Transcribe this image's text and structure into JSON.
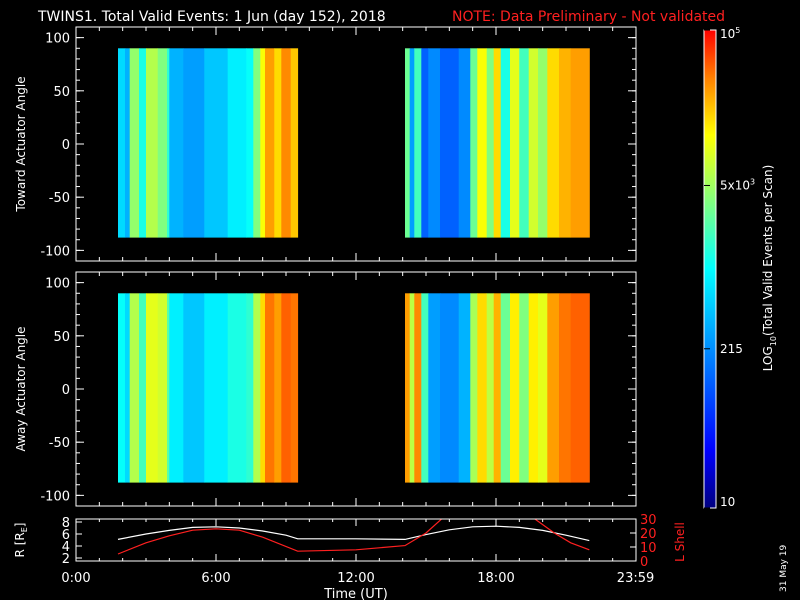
{
  "header": {
    "title": "TWINS1. Total Valid Events:  1 Jun (day 152), 2018",
    "note": "NOTE: Data Preliminary - Not validated",
    "note_color": "#ff2020"
  },
  "footer_date": "31 May 19",
  "colorbar": {
    "label": "LOG",
    "label_sub": "10",
    "label_rest": "(Total Valid  Events per Scan)",
    "ticks": [
      {
        "text": "10",
        "value": 10
      },
      {
        "text": "215",
        "value": 215
      },
      {
        "text": "5x10",
        "sup": "3",
        "value": 5000
      },
      {
        "text": "10",
        "sup": "5",
        "value": 100000
      }
    ],
    "range": [
      10,
      100000
    ],
    "scale": "log",
    "colormap": "jet"
  },
  "chart_data": [
    {
      "type": "heatmap",
      "panel": "top",
      "ylabel": "Toward Actuator Angle",
      "ylim": [
        -110,
        110
      ],
      "yticks": [
        100,
        50,
        0,
        -50,
        -100
      ],
      "xlim": [
        0,
        24
      ],
      "data_blocks": [
        {
          "t_start": 1.8,
          "t_end": 9.5,
          "angle_min": -88,
          "angle_max": 90
        },
        {
          "t_start": 14.1,
          "t_end": 22.0,
          "angle_min": -88,
          "angle_max": 90
        }
      ],
      "column_levels": [
        {
          "t": 1.8,
          "level": 0.34
        },
        {
          "t": 2.1,
          "level": 0.3
        },
        {
          "t": 2.3,
          "level": 0.52
        },
        {
          "t": 2.7,
          "level": 0.4
        },
        {
          "t": 3.0,
          "level": 0.55
        },
        {
          "t": 3.5,
          "level": 0.5
        },
        {
          "t": 3.9,
          "level": 0.42
        },
        {
          "t": 4.0,
          "level": 0.3
        },
        {
          "t": 4.6,
          "level": 0.28
        },
        {
          "t": 5.5,
          "level": 0.32
        },
        {
          "t": 6.5,
          "level": 0.36
        },
        {
          "t": 7.3,
          "level": 0.38
        },
        {
          "t": 7.6,
          "level": 0.5
        },
        {
          "t": 7.9,
          "level": 0.62
        },
        {
          "t": 8.1,
          "level": 0.72
        },
        {
          "t": 8.5,
          "level": 0.66
        },
        {
          "t": 8.8,
          "level": 0.74
        },
        {
          "t": 9.2,
          "level": 0.68
        },
        {
          "t": 14.1,
          "level": 0.48
        },
        {
          "t": 14.3,
          "level": 0.28
        },
        {
          "t": 14.5,
          "level": 0.44
        },
        {
          "t": 14.8,
          "level": 0.22
        },
        {
          "t": 15.1,
          "level": 0.26
        },
        {
          "t": 15.6,
          "level": 0.22
        },
        {
          "t": 16.4,
          "level": 0.26
        },
        {
          "t": 16.9,
          "level": 0.48
        },
        {
          "t": 17.2,
          "level": 0.62
        },
        {
          "t": 17.6,
          "level": 0.5
        },
        {
          "t": 17.9,
          "level": 0.66
        },
        {
          "t": 18.2,
          "level": 0.4
        },
        {
          "t": 18.6,
          "level": 0.6
        },
        {
          "t": 19.0,
          "level": 0.44
        },
        {
          "t": 19.4,
          "level": 0.58
        },
        {
          "t": 19.8,
          "level": 0.52
        },
        {
          "t": 20.2,
          "level": 0.66
        },
        {
          "t": 20.7,
          "level": 0.7
        },
        {
          "t": 21.2,
          "level": 0.72
        }
      ]
    },
    {
      "type": "heatmap",
      "panel": "middle",
      "ylabel": "Away Actuator Angle",
      "ylim": [
        -110,
        110
      ],
      "yticks": [
        100,
        50,
        0,
        -50,
        -100
      ],
      "xlim": [
        0,
        24
      ],
      "data_blocks": [
        {
          "t_start": 1.8,
          "t_end": 9.5,
          "angle_min": -88,
          "angle_max": 90
        },
        {
          "t_start": 14.1,
          "t_end": 22.0,
          "angle_min": -88,
          "angle_max": 90
        }
      ],
      "column_levels": [
        {
          "t": 1.8,
          "level": 0.38
        },
        {
          "t": 2.1,
          "level": 0.34
        },
        {
          "t": 2.3,
          "level": 0.55
        },
        {
          "t": 2.7,
          "level": 0.44
        },
        {
          "t": 3.0,
          "level": 0.6
        },
        {
          "t": 3.5,
          "level": 0.58
        },
        {
          "t": 3.9,
          "level": 0.46
        },
        {
          "t": 4.0,
          "level": 0.36
        },
        {
          "t": 4.6,
          "level": 0.32
        },
        {
          "t": 5.5,
          "level": 0.36
        },
        {
          "t": 6.5,
          "level": 0.4
        },
        {
          "t": 7.3,
          "level": 0.42
        },
        {
          "t": 7.6,
          "level": 0.55
        },
        {
          "t": 7.9,
          "level": 0.66
        },
        {
          "t": 8.1,
          "level": 0.76
        },
        {
          "t": 8.5,
          "level": 0.72
        },
        {
          "t": 8.8,
          "level": 0.78
        },
        {
          "t": 9.2,
          "level": 0.76
        },
        {
          "t": 14.1,
          "level": 0.72
        },
        {
          "t": 14.3,
          "level": 0.56
        },
        {
          "t": 14.5,
          "level": 0.74
        },
        {
          "t": 14.8,
          "level": 0.44
        },
        {
          "t": 15.1,
          "level": 0.28
        },
        {
          "t": 15.6,
          "level": 0.26
        },
        {
          "t": 16.4,
          "level": 0.3
        },
        {
          "t": 16.9,
          "level": 0.54
        },
        {
          "t": 17.2,
          "level": 0.66
        },
        {
          "t": 17.6,
          "level": 0.56
        },
        {
          "t": 17.9,
          "level": 0.7
        },
        {
          "t": 18.2,
          "level": 0.48
        },
        {
          "t": 18.6,
          "level": 0.64
        },
        {
          "t": 19.0,
          "level": 0.5
        },
        {
          "t": 19.4,
          "level": 0.64
        },
        {
          "t": 19.8,
          "level": 0.6
        },
        {
          "t": 20.2,
          "level": 0.72
        },
        {
          "t": 20.7,
          "level": 0.76
        },
        {
          "t": 21.2,
          "level": 0.78
        }
      ]
    },
    {
      "type": "line",
      "panel": "bottom",
      "xlabel": "Time (UT)",
      "x_ticks": [
        {
          "text": "0:00",
          "t": 0
        },
        {
          "text": "6:00",
          "t": 6
        },
        {
          "text": "12:00",
          "t": 12
        },
        {
          "text": "18:00",
          "t": 18
        },
        {
          "text": "23:59",
          "t": 23.98
        }
      ],
      "xlim": [
        0,
        24
      ],
      "ylabel_left": "R [R",
      "ylabel_left_sub": "E",
      "ylabel_left_end": "]",
      "ylim_left": [
        1.5,
        8.5
      ],
      "yticks_left": [
        2,
        4,
        6,
        8
      ],
      "ylabel_right": "L Shell",
      "ylabel_right_color": "#ff2020",
      "ylim_right": [
        0,
        30
      ],
      "yticks_right": [
        0,
        10,
        20,
        30
      ],
      "series": [
        {
          "axis": "left",
          "color": "#ffffff",
          "x": [
            1.8,
            3.0,
            4.0,
            5.0,
            6.0,
            7.0,
            8.0,
            9.0,
            9.5,
            12.0,
            14.1,
            15.0,
            16.0,
            17.0,
            18.0,
            19.0,
            20.0,
            21.0,
            22.0
          ],
          "y": [
            5.1,
            6.0,
            6.6,
            7.1,
            7.2,
            7.0,
            6.5,
            5.8,
            5.2,
            5.2,
            5.1,
            5.9,
            6.7,
            7.2,
            7.3,
            7.1,
            6.6,
            5.8,
            4.9
          ]
        },
        {
          "axis": "right",
          "color": "#ff2020",
          "x": [
            1.8,
            3.0,
            4.0,
            5.0,
            6.0,
            7.0,
            8.0,
            9.5,
            12.0,
            14.1,
            15.0,
            15.8,
            19.5,
            20.5,
            21.2,
            22.0
          ],
          "y": [
            5,
            13,
            18,
            22,
            23,
            22,
            17,
            7,
            8,
            11,
            20,
            32,
            32,
            20,
            13,
            8
          ]
        }
      ]
    }
  ]
}
